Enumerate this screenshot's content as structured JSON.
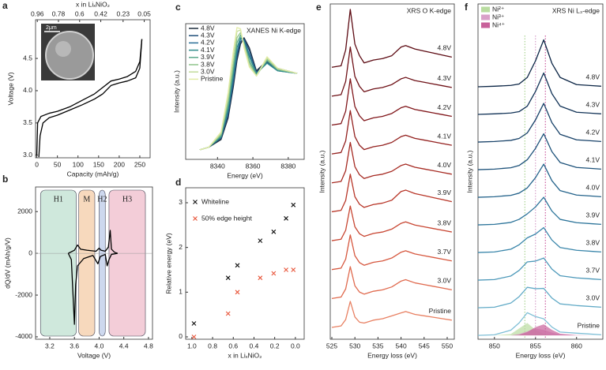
{
  "chart_data": [
    {
      "type": "line",
      "panel_label": "a",
      "xlabel": "Capacity (mAh/g)",
      "ylabel": "Voltage (V)",
      "x2label": "x in LiₓNiO₂",
      "xlim": [
        -3,
        275
      ],
      "ylim": [
        2.96,
        5.1
      ],
      "xticks": [
        0,
        50,
        100,
        150,
        200,
        250
      ],
      "yticks": [
        {
          "value": 3,
          "label": "3.0"
        },
        3.5,
        {
          "value": 4,
          "label": "4.0"
        },
        4.5
      ],
      "x2lim": [
        0.975,
        0.0
      ],
      "x2ticks": [
        0.96,
        0.78,
        0.6,
        0.42,
        0.23,
        0.05
      ],
      "inset_label": "2μm",
      "series": [
        {
          "color": "#000000",
          "x": [
            0,
            2,
            10,
            30,
            50,
            80,
            110,
            140,
            160,
            180,
            200,
            220,
            240,
            250,
            255
          ],
          "values": [
            3.0,
            3.5,
            3.6,
            3.65,
            3.68,
            3.75,
            3.85,
            3.95,
            4.05,
            4.15,
            4.18,
            4.22,
            4.3,
            4.45,
            4.8
          ]
        },
        {
          "color": "#000000",
          "x": [
            255,
            250,
            240,
            220,
            200,
            180,
            160,
            140,
            110,
            80,
            50,
            30,
            15,
            8,
            5
          ],
          "values": [
            4.8,
            4.35,
            4.2,
            4.15,
            4.12,
            4.08,
            3.95,
            3.87,
            3.78,
            3.7,
            3.62,
            3.58,
            3.5,
            3.3,
            2.97
          ]
        }
      ]
    },
    {
      "type": "line",
      "panel_label": "b",
      "xlabel": "Voltage (V)",
      "ylabel": "dQ/dV (mAh/g/V)",
      "xlim": [
        2.97,
        4.865
      ],
      "ylim": [
        -4115,
        3180
      ],
      "xticks": [
        3.2,
        3.6,
        {
          "value": 4,
          "label": "4.0"
        },
        4.4,
        4.8
      ],
      "yticks": [
        -4000,
        -2000,
        0,
        2000
      ],
      "regions": [
        {
          "label": "H1",
          "start": 3.05,
          "end": 3.63,
          "color": "#cfe8dc"
        },
        {
          "label": "M",
          "start": 3.67,
          "end": 3.93,
          "color": "#f7d9bd"
        },
        {
          "label": "H2",
          "start": 4.0,
          "end": 4.1,
          "color": "#cdd8ee"
        },
        {
          "label": "H3",
          "start": 4.16,
          "end": 4.75,
          "color": "#f3cdd8"
        }
      ],
      "series": [
        {
          "color": "#000000",
          "x": [
            3.5,
            3.6,
            3.65,
            3.7,
            3.8,
            3.95,
            4.0,
            4.03,
            4.1,
            4.15,
            4.18,
            4.2,
            4.25,
            4.3
          ],
          "values": [
            0,
            150,
            400,
            200,
            150,
            100,
            250,
            150,
            100,
            300,
            1100,
            200,
            50,
            0
          ]
        },
        {
          "color": "#000000",
          "x": [
            3.5,
            3.55,
            3.6,
            3.62,
            3.65,
            3.75,
            3.9,
            3.98,
            4.02,
            4.1,
            4.13,
            4.16,
            4.2,
            4.3
          ],
          "values": [
            0,
            -300,
            -3400,
            -1500,
            -600,
            -250,
            -100,
            -500,
            -150,
            -50,
            -600,
            -300,
            -50,
            0
          ]
        }
      ]
    },
    {
      "type": "line",
      "panel_label": "c",
      "xlabel": "Energy (eV)",
      "ylabel": "Intensity (a.u.)",
      "annotation": "XANES Ni K-edge",
      "legend": "top-left",
      "xlim": [
        8322,
        8389
      ],
      "ylim": [
        0.025,
        1.09
      ],
      "xticks": [
        8340,
        8360,
        8380
      ],
      "x": [
        8330,
        8335,
        8342,
        8346,
        8349,
        8351,
        8353,
        8355,
        8358,
        8362,
        8368,
        8374,
        8385
      ],
      "series": [
        {
          "name": "4.8V",
          "color": "#1b2a3a",
          "values": [
            0.1,
            0.12,
            0.18,
            0.35,
            0.6,
            0.8,
            0.93,
            0.98,
            0.9,
            0.72,
            0.8,
            0.74,
            0.7
          ]
        },
        {
          "name": "4.3V",
          "color": "#1f4e79",
          "values": [
            0.1,
            0.12,
            0.19,
            0.37,
            0.63,
            0.83,
            0.95,
            0.97,
            0.88,
            0.71,
            0.79,
            0.73,
            0.7
          ]
        },
        {
          "name": "4.2V",
          "color": "#2a6f97",
          "values": [
            0.1,
            0.12,
            0.2,
            0.4,
            0.66,
            0.86,
            0.97,
            0.96,
            0.85,
            0.7,
            0.78,
            0.72,
            0.7
          ]
        },
        {
          "name": "4.1V",
          "color": "#2e8b8b",
          "values": [
            0.1,
            0.12,
            0.2,
            0.42,
            0.7,
            0.9,
            0.98,
            0.95,
            0.83,
            0.7,
            0.78,
            0.72,
            0.7
          ]
        },
        {
          "name": "3.9V",
          "color": "#5aa88a",
          "values": [
            0.1,
            0.12,
            0.21,
            0.45,
            0.74,
            0.94,
            1.0,
            0.94,
            0.8,
            0.69,
            0.8,
            0.73,
            0.7
          ]
        },
        {
          "name": "3.8V",
          "color": "#8fc48a",
          "values": [
            0.1,
            0.12,
            0.22,
            0.48,
            0.78,
            0.98,
            1.02,
            0.93,
            0.78,
            0.68,
            0.81,
            0.73,
            0.7
          ]
        },
        {
          "name": "3.0V",
          "color": "#c2dd9a",
          "values": [
            0.1,
            0.12,
            0.23,
            0.52,
            0.84,
            1.03,
            1.04,
            0.92,
            0.76,
            0.68,
            0.82,
            0.74,
            0.7
          ]
        },
        {
          "name": "Pristine",
          "color": "#e3eca8",
          "values": [
            0.1,
            0.12,
            0.24,
            0.55,
            0.88,
            1.06,
            1.05,
            0.9,
            0.75,
            0.68,
            0.83,
            0.74,
            0.7
          ]
        }
      ]
    },
    {
      "type": "scatter",
      "panel_label": "d",
      "xlabel": "x in LiₓNiO₂",
      "ylabel": "Relative energy (eV)",
      "legend": "top-left",
      "xlim": [
        1.06,
        -0.085
      ],
      "ylim": [
        -0.053,
        3.335
      ],
      "xticks": [
        {
          "value": 1,
          "label": "1.0"
        },
        0.8,
        0.6,
        0.4,
        0.2,
        {
          "value": 0,
          "label": "0.0"
        }
      ],
      "yticks": [
        0,
        1,
        2,
        3
      ],
      "series": [
        {
          "name": "Whiteline",
          "color": "#111111",
          "x": [
            0.98,
            0.65,
            0.56,
            0.34,
            0.21,
            0.09,
            0.02
          ],
          "values": [
            0.3,
            1.32,
            1.6,
            2.15,
            2.35,
            2.65,
            2.95
          ]
        },
        {
          "name": "50% edge height",
          "color": "#e8553a",
          "x": [
            0.98,
            0.65,
            0.56,
            0.34,
            0.21,
            0.09,
            0.02
          ],
          "values": [
            0,
            0.52,
            1.0,
            1.32,
            1.42,
            1.5,
            1.5
          ]
        }
      ]
    },
    {
      "type": "line",
      "panel_label": "e",
      "xlabel": "Energy loss (eV)",
      "ylabel": "Intensity (a.u.)",
      "annotation": "XRS O K-edge",
      "legend": "right",
      "xlim": [
        524.66,
        551.54
      ],
      "ylim": [
        -0.41,
        11.19
      ],
      "xticks": [
        525,
        530,
        535,
        540,
        545,
        550
      ],
      "x": [
        525,
        527,
        528,
        529,
        530,
        531,
        532,
        534,
        536,
        538,
        540,
        541,
        543,
        545,
        547,
        549,
        551
      ],
      "series": [
        {
          "name": "4.8V",
          "color": "#5c0a12",
          "values": [
            9,
            9.05,
            9.6,
            11,
            9.8,
            9.4,
            9.15,
            9.25,
            9.3,
            9.4,
            9.7,
            9.75,
            9.63,
            9.56,
            9.49,
            9.42,
            9.35
          ]
        },
        {
          "name": "4.3V",
          "color": "#6e1016",
          "values": [
            8,
            8.05,
            8.51,
            9.7,
            8.68,
            8.34,
            8.15,
            8.25,
            8.3,
            8.4,
            8.6,
            8.65,
            8.54,
            8.48,
            8.42,
            8.36,
            8.3
          ]
        },
        {
          "name": "4.2V",
          "color": "#80161a",
          "values": [
            7,
            7.05,
            7.48,
            8.6,
            7.64,
            7.32,
            7.15,
            7.25,
            7.3,
            7.4,
            7.6,
            7.65,
            7.54,
            7.48,
            7.42,
            7.36,
            7.3
          ]
        },
        {
          "name": "4.1V",
          "color": "#93201e",
          "values": [
            6,
            6.05,
            6.45,
            7.5,
            6.6,
            6.3,
            6.15,
            6.25,
            6.3,
            6.4,
            6.6,
            6.65,
            6.54,
            6.48,
            6.42,
            6.36,
            6.3
          ]
        },
        {
          "name": "4.0V",
          "color": "#a62a22",
          "values": [
            5,
            5.05,
            5.42,
            6.4,
            5.56,
            5.28,
            5.15,
            5.25,
            5.3,
            5.4,
            5.6,
            5.65,
            5.54,
            5.48,
            5.42,
            5.36,
            5.3
          ]
        },
        {
          "name": "3.9V",
          "color": "#b83628",
          "values": [
            4,
            4.05,
            4.39,
            5.3,
            4.52,
            4.26,
            4.15,
            4.25,
            4.3,
            4.4,
            4.7,
            4.75,
            4.63,
            4.56,
            4.49,
            4.42,
            4.35
          ]
        },
        {
          "name": "3.8V",
          "color": "#c84632",
          "values": [
            3,
            3.05,
            3.36,
            4.2,
            3.48,
            3.24,
            3.15,
            3.25,
            3.3,
            3.4,
            3.6,
            3.65,
            3.54,
            3.48,
            3.42,
            3.36,
            3.3
          ]
        },
        {
          "name": "3.7V",
          "color": "#d6573e",
          "values": [
            2,
            2.05,
            2.36,
            3.2,
            2.48,
            2.24,
            2.15,
            2.25,
            2.3,
            2.4,
            2.6,
            2.65,
            2.54,
            2.48,
            2.42,
            2.36,
            2.3
          ]
        },
        {
          "name": "3.0V",
          "color": "#e06a4e",
          "values": [
            1,
            1.05,
            1.33,
            2.1,
            1.44,
            1.22,
            1.15,
            1.25,
            1.3,
            1.4,
            1.6,
            1.65,
            1.54,
            1.48,
            1.42,
            1.36,
            1.3
          ]
        },
        {
          "name": "Pristine",
          "color": "#e88062",
          "values": [
            0,
            0.05,
            0.27,
            0.9,
            0.36,
            0.18,
            0.15,
            0.25,
            0.3,
            0.4,
            0.5,
            0.55,
            0.45,
            0.4,
            0.35,
            0.3,
            0.25
          ]
        }
      ]
    },
    {
      "type": "line",
      "panel_label": "f",
      "xlabel": "Energy loss (eV)",
      "ylabel": "Intensity (a.u.)",
      "annotation": "XRS Ni L₃-edge",
      "legend": "right",
      "xlim": [
        848,
        863.2
      ],
      "ylim": [
        -0.14,
        12
      ],
      "xticks": [
        850,
        855,
        860
      ],
      "x": [
        848,
        850,
        852,
        853,
        854,
        855,
        856,
        857,
        858,
        860,
        862,
        863
      ],
      "vlines": [
        {
          "value": 853.7,
          "color": "#9acb7f"
        },
        {
          "value": 855,
          "color": "#d08fc0"
        },
        {
          "value": 856.2,
          "color": "#c03c8c"
        }
      ],
      "components": [
        {
          "name": "Ni²⁺",
          "color": "#b9dca0",
          "values": [
            0,
            0,
            0.05,
            0.25,
            0.45,
            0.2,
            0.05,
            0,
            0,
            0,
            0,
            0
          ]
        },
        {
          "name": "Ni³⁺",
          "color": "#d9a0c8",
          "values": [
            0,
            0,
            0,
            0.05,
            0.15,
            0.25,
            0.2,
            0.1,
            0.03,
            0,
            0,
            0
          ]
        },
        {
          "name": "Ni⁴⁺",
          "color": "#c8609a",
          "values": [
            0,
            0,
            0,
            0.02,
            0.12,
            0.3,
            0.4,
            0.2,
            0.06,
            0.01,
            0,
            0
          ]
        }
      ],
      "series": [
        {
          "name": "4.8V",
          "color": "#0b2545",
          "values": [
            9,
            9.02,
            9.05,
            9.1,
            9.34,
            9.94,
            10.7,
            9.85,
            9.34,
            9.08,
            9.04,
            9.02
          ]
        },
        {
          "name": "4.3V",
          "color": "#113256",
          "values": [
            8,
            8.02,
            8.05,
            8.1,
            8.3,
            8.83,
            9.5,
            8.75,
            8.3,
            8.08,
            8.04,
            8.02
          ]
        },
        {
          "name": "4.2V",
          "color": "#174168",
          "values": [
            7,
            7.02,
            7.06,
            7.13,
            7.33,
            7.8,
            8.4,
            7.7,
            7.28,
            7.08,
            7.04,
            7.02
          ]
        },
        {
          "name": "4.1V",
          "color": "#1d527a",
          "values": [
            6,
            6.02,
            6.07,
            6.15,
            6.36,
            6.77,
            7.3,
            6.65,
            6.26,
            6.08,
            6.04,
            6.02
          ]
        },
        {
          "name": "4.0V",
          "color": "#24638b",
          "values": [
            5,
            5.02,
            5.07,
            5.15,
            5.34,
            5.71,
            6.2,
            5.6,
            5.24,
            5.08,
            5.04,
            5.02
          ]
        },
        {
          "name": "3.9V",
          "color": "#2c749a",
          "values": [
            4,
            4.02,
            4.09,
            4.2,
            4.4,
            4.65,
            5,
            4.5,
            4.2,
            4.08,
            4.04,
            4.02
          ]
        },
        {
          "name": "3.8V",
          "color": "#3a86aa",
          "values": [
            3,
            3.02,
            3.12,
            3.28,
            3.53,
            3.67,
            3.9,
            3.45,
            3.18,
            3.08,
            3.04,
            3.02
          ]
        },
        {
          "name": "3.7V",
          "color": "#4c98b9",
          "values": [
            2,
            2.02,
            2.15,
            2.35,
            2.66,
            2.69,
            2.8,
            2.4,
            2.16,
            2.08,
            2.04,
            2.02
          ]
        },
        {
          "name": "3.0V",
          "color": "#63abc7",
          "values": [
            1,
            1.02,
            1.17,
            1.4,
            1.74,
            1.69,
            1.7,
            1.35,
            1.14,
            1.08,
            1.04,
            1.02
          ]
        },
        {
          "name": "Pristine",
          "color": "#7fbfd6",
          "values": [
            0,
            0.02,
            0.19,
            0.45,
            0.82,
            0.68,
            0.6,
            0.3,
            0.12,
            0.08,
            0.04,
            0.02
          ]
        }
      ]
    }
  ]
}
